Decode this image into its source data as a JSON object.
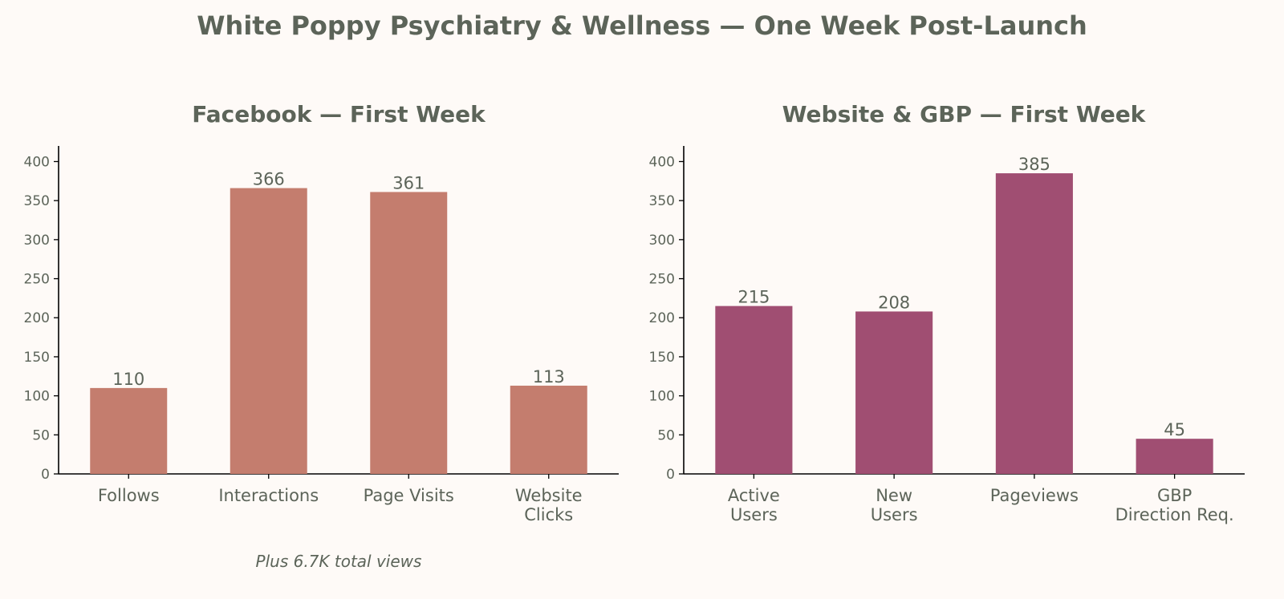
{
  "suptitle": "White Poppy Psychiatry & Wellness — One Week Post-Launch",
  "chart_data": [
    {
      "type": "bar",
      "title": "Facebook — First Week",
      "categories": [
        "Follows",
        "Interactions",
        "Page Visits",
        "Website\nClicks"
      ],
      "values": [
        110,
        366,
        361,
        113
      ],
      "ylim": [
        0,
        420
      ],
      "yticks": [
        0,
        50,
        100,
        150,
        200,
        250,
        300,
        350,
        400
      ],
      "xlabel": "",
      "ylabel": "",
      "color": "#c47d6e",
      "grid": false,
      "annotation": "Plus 6.7K total views"
    },
    {
      "type": "bar",
      "title": "Website & GBP — First Week",
      "categories": [
        "Active\nUsers",
        "New\nUsers",
        "Pageviews",
        "GBP\nDirection Req."
      ],
      "values": [
        215,
        208,
        385,
        45
      ],
      "ylim": [
        0,
        420
      ],
      "yticks": [
        0,
        50,
        100,
        150,
        200,
        250,
        300,
        350,
        400
      ],
      "xlabel": "",
      "ylabel": "",
      "color": "#a04e72",
      "grid": false
    }
  ]
}
